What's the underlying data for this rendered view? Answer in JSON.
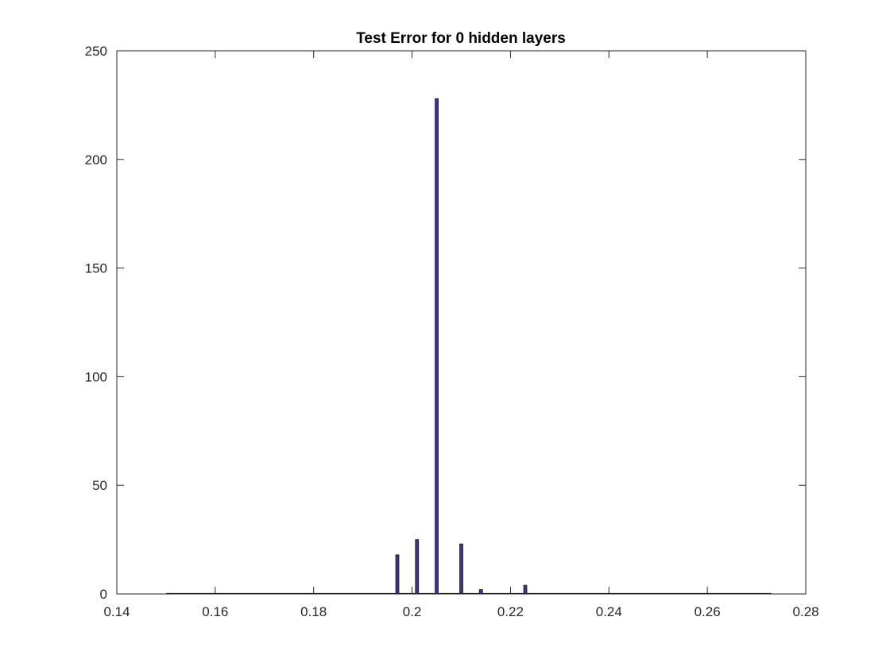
{
  "chart_data": {
    "type": "bar",
    "title": "Test Error for 0 hidden layers",
    "xlabel": "",
    "ylabel": "",
    "xlim": [
      0.14,
      0.28
    ],
    "ylim": [
      0,
      250
    ],
    "xticks": [
      "0.14",
      "0.16",
      "0.18",
      "0.2",
      "0.22",
      "0.24",
      "0.26",
      "0.28"
    ],
    "yticks": [
      "0",
      "50",
      "100",
      "150",
      "200",
      "250"
    ],
    "grid": false,
    "bar_color": "#3b3584",
    "bar_edge_color": "#1a1a1a",
    "x": [
      0.197,
      0.201,
      0.205,
      0.21,
      0.214,
      0.223
    ],
    "values": [
      18,
      25,
      228,
      23,
      2,
      4
    ],
    "baseline_range": [
      0.15,
      0.273
    ]
  }
}
